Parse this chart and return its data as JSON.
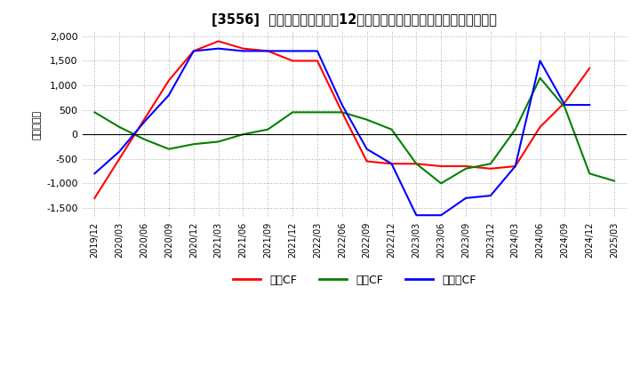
{
  "title": "[3556]  キャッシュフローの12か月移動合計の対前年同期増減額の推移",
  "ylabel": "（百万円）",
  "ylim": [
    -1700,
    2100
  ],
  "yticks": [
    -1500,
    -1000,
    -500,
    0,
    500,
    1000,
    1500,
    2000
  ],
  "legend": [
    "営業CF",
    "投資CF",
    "フリーCF"
  ],
  "colors": {
    "営業CF": "#ff0000",
    "投資CF": "#008000",
    "フリーCF": "#0000ff"
  },
  "x_labels": [
    "2019/12",
    "2020/03",
    "2020/06",
    "2020/09",
    "2020/12",
    "2021/03",
    "2021/06",
    "2021/09",
    "2021/12",
    "2022/03",
    "2022/06",
    "2022/09",
    "2022/12",
    "2023/03",
    "2023/06",
    "2023/09",
    "2023/12",
    "2024/03",
    "2024/06",
    "2024/09",
    "2024/12",
    "2025/03"
  ],
  "営業CF": [
    -1300,
    -500,
    300,
    1100,
    1700,
    1900,
    1750,
    1700,
    1500,
    1500,
    450,
    -550,
    -600,
    -600,
    -650,
    -650,
    -700,
    -650,
    150,
    650,
    1350,
    null
  ],
  "投資CF": [
    450,
    150,
    -100,
    -300,
    -200,
    -150,
    0,
    100,
    450,
    450,
    450,
    300,
    100,
    -600,
    -1000,
    -700,
    -600,
    100,
    1150,
    550,
    -800,
    -950
  ],
  "フリーCF": [
    -800,
    -350,
    250,
    800,
    1700,
    1750,
    1700,
    1700,
    1700,
    1700,
    600,
    -300,
    -600,
    -1650,
    -1650,
    -1300,
    -1250,
    -650,
    1500,
    600,
    600,
    null
  ],
  "background_color": "#ffffff",
  "grid_color": "#aaaaaa",
  "title_fontsize": 10.5
}
